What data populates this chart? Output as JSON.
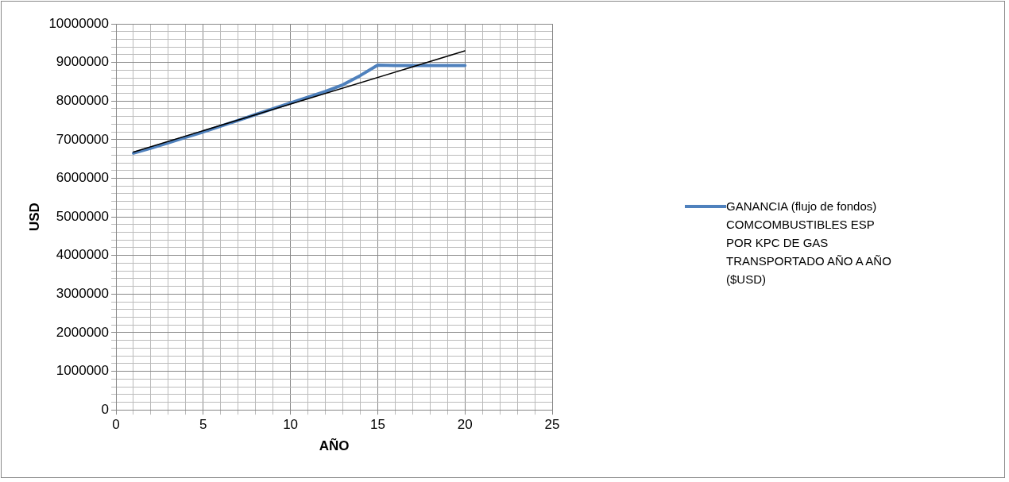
{
  "chart_data": {
    "type": "line",
    "xlabel": "AÑO",
    "ylabel": "USD",
    "xlim": [
      0,
      25
    ],
    "xticks": [
      0,
      {
        "value": 1,
        "label": null
      },
      {
        "value": 2,
        "label": null
      },
      {
        "value": 3,
        "label": null
      },
      {
        "value": 4,
        "label": null
      },
      5,
      {
        "value": 6,
        "label": null
      },
      {
        "value": 7,
        "label": null
      },
      {
        "value": 8,
        "label": null
      },
      {
        "value": 9,
        "label": null
      },
      10,
      {
        "value": 11,
        "label": null
      },
      {
        "value": 12,
        "label": null
      },
      {
        "value": 13,
        "label": null
      },
      {
        "value": 14,
        "label": null
      },
      15,
      {
        "value": 16,
        "label": null
      },
      {
        "value": 17,
        "label": null
      },
      {
        "value": 18,
        "label": null
      },
      {
        "value": 19,
        "label": null
      },
      20,
      {
        "value": 21,
        "label": null
      },
      {
        "value": 22,
        "label": null
      },
      {
        "value": 23,
        "label": null
      },
      {
        "value": 24,
        "label": null
      },
      25
    ],
    "ylim": [
      0,
      10000000
    ],
    "yticks": [
      0,
      {
        "value": 200000,
        "label": null
      },
      {
        "value": 400000,
        "label": null
      },
      {
        "value": 600000,
        "label": null
      },
      {
        "value": 800000,
        "label": null
      },
      1000000,
      {
        "value": 1200000,
        "label": null
      },
      {
        "value": 1400000,
        "label": null
      },
      {
        "value": 1600000,
        "label": null
      },
      {
        "value": 1800000,
        "label": null
      },
      2000000,
      {
        "value": 2200000,
        "label": null
      },
      {
        "value": 2400000,
        "label": null
      },
      {
        "value": 2600000,
        "label": null
      },
      {
        "value": 2800000,
        "label": null
      },
      3000000,
      {
        "value": 3200000,
        "label": null
      },
      {
        "value": 3400000,
        "label": null
      },
      {
        "value": 3600000,
        "label": null
      },
      {
        "value": 3800000,
        "label": null
      },
      4000000,
      {
        "value": 4200000,
        "label": null
      },
      {
        "value": 4400000,
        "label": null
      },
      {
        "value": 4600000,
        "label": null
      },
      {
        "value": 4800000,
        "label": null
      },
      5000000,
      {
        "value": 5200000,
        "label": null
      },
      {
        "value": 5400000,
        "label": null
      },
      {
        "value": 5600000,
        "label": null
      },
      {
        "value": 5800000,
        "label": null
      },
      6000000,
      {
        "value": 6200000,
        "label": null
      },
      {
        "value": 6400000,
        "label": null
      },
      {
        "value": 6600000,
        "label": null
      },
      {
        "value": 6800000,
        "label": null
      },
      7000000,
      {
        "value": 7200000,
        "label": null
      },
      {
        "value": 7400000,
        "label": null
      },
      {
        "value": 7600000,
        "label": null
      },
      {
        "value": 7800000,
        "label": null
      },
      8000000,
      {
        "value": 8200000,
        "label": null
      },
      {
        "value": 8400000,
        "label": null
      },
      {
        "value": 8600000,
        "label": null
      },
      {
        "value": 8800000,
        "label": null
      },
      9000000,
      {
        "value": 9200000,
        "label": null
      },
      {
        "value": 9400000,
        "label": null
      },
      {
        "value": 9600000,
        "label": null
      },
      {
        "value": 9800000,
        "label": null
      },
      10000000
    ],
    "grid": true,
    "legend": "right",
    "marker": "none",
    "series": [
      {
        "name": "GANANCIA (flujo de fondos) COMCOMBUSTIBLES ESP POR KPC DE GAS TRANSPORTADO AÑO A AÑO ($USD)",
        "color": "#4f81bd",
        "x": [
          1,
          2,
          3,
          4,
          5,
          6,
          7,
          8,
          9,
          10,
          11,
          12,
          13,
          14,
          15,
          16,
          17,
          18,
          19,
          20
        ],
        "values": [
          6650000,
          6780000,
          6920000,
          7060000,
          7200000,
          7350000,
          7500000,
          7650000,
          7800000,
          7950000,
          8100000,
          8250000,
          8420000,
          8660000,
          8930000,
          8920000,
          8920000,
          8920000,
          8920000,
          8920000
        ]
      },
      {
        "color": "#000000",
        "x": [
          1,
          20
        ],
        "values": [
          6680000,
          9300000
        ]
      }
    ]
  }
}
